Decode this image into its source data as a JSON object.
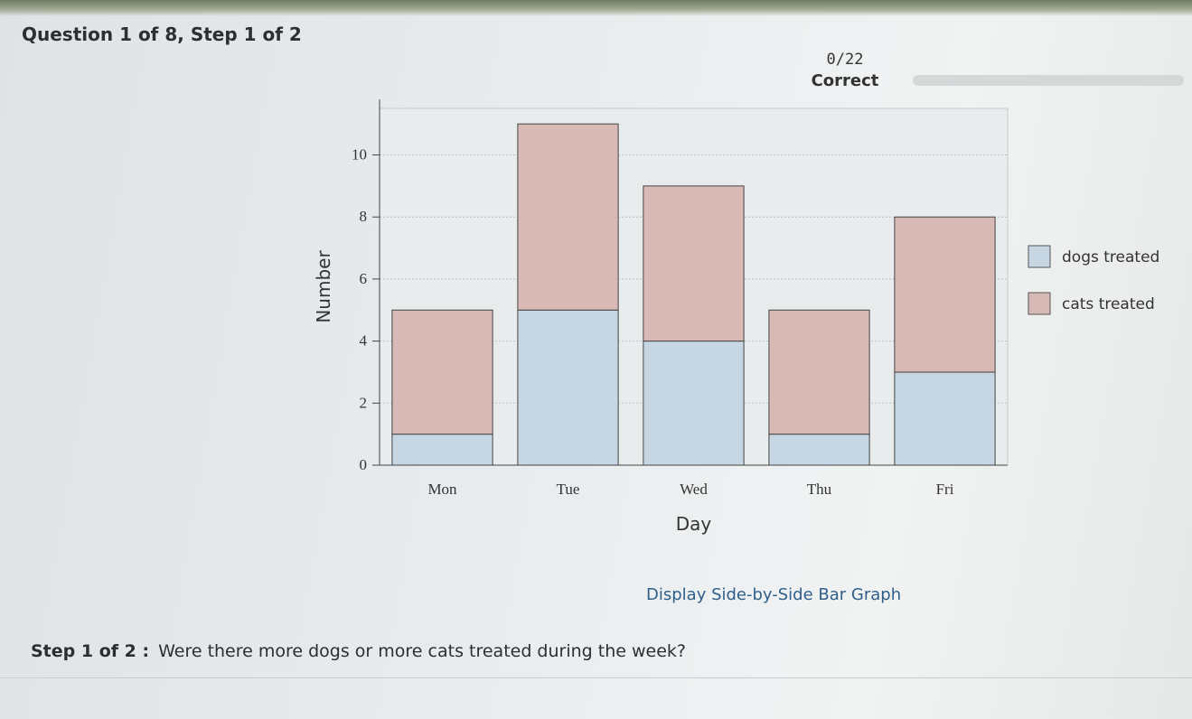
{
  "question": {
    "title": "Question 1 of 8, Step 1 of 2"
  },
  "score": {
    "value": "0/22",
    "label": "Correct",
    "progress_fraction": 0.0
  },
  "chart_data": {
    "type": "bar",
    "stacked": true,
    "categories": [
      "Mon",
      "Tue",
      "Wed",
      "Thu",
      "Fri"
    ],
    "series": [
      {
        "name": "dogs treated",
        "values": [
          1,
          5,
          4,
          1,
          3
        ],
        "color": "#c6d6e3"
      },
      {
        "name": "cats treated",
        "values": [
          4,
          6,
          5,
          4,
          5
        ],
        "color": "#d9b9b6"
      }
    ],
    "xlabel": "Day",
    "ylabel": "Number",
    "ylim": [
      0,
      11.5
    ],
    "yticks": [
      0,
      2,
      4,
      6,
      8,
      10
    ],
    "grid": true,
    "legend_position": "right"
  },
  "toggle": {
    "label": "Display Side-by-Side Bar Graph"
  },
  "step": {
    "label": "Step 1 of 2 :",
    "prompt": "Were there more dogs or more cats treated during the week?"
  }
}
